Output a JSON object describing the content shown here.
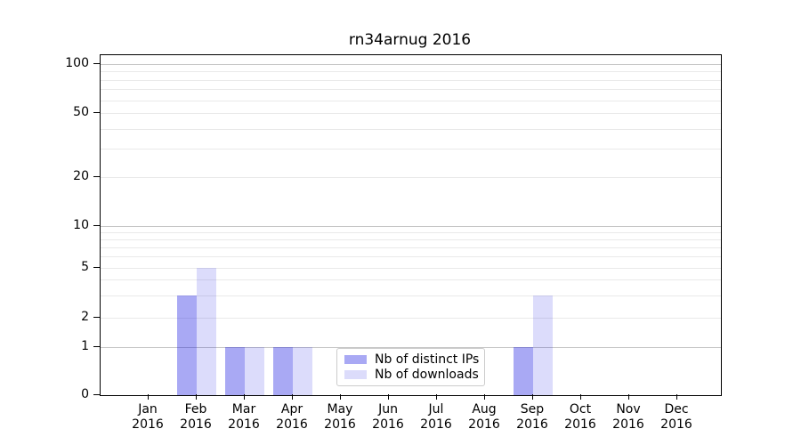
{
  "chart_data": {
    "type": "bar",
    "title": "rn34arnug 2016",
    "categories": [
      {
        "line1": "Jan",
        "line2": "2016"
      },
      {
        "line1": "Feb",
        "line2": "2016"
      },
      {
        "line1": "Mar",
        "line2": "2016"
      },
      {
        "line1": "Apr",
        "line2": "2016"
      },
      {
        "line1": "May",
        "line2": "2016"
      },
      {
        "line1": "Jun",
        "line2": "2016"
      },
      {
        "line1": "Jul",
        "line2": "2016"
      },
      {
        "line1": "Aug",
        "line2": "2016"
      },
      {
        "line1": "Sep",
        "line2": "2016"
      },
      {
        "line1": "Oct",
        "line2": "2016"
      },
      {
        "line1": "Nov",
        "line2": "2016"
      },
      {
        "line1": "Dec",
        "line2": "2016"
      }
    ],
    "series": [
      {
        "name": "Nb of distinct IPs",
        "color": "rgba(16,16,224,0.36)",
        "values": [
          0,
          3,
          1,
          1,
          0,
          0,
          0,
          0,
          1,
          0,
          0,
          0
        ]
      },
      {
        "name": "Nb of downloads",
        "color": "rgba(16,16,224,0.145)",
        "values": [
          0,
          5,
          1,
          1,
          0,
          0,
          0,
          0,
          3,
          0,
          0,
          0
        ]
      }
    ],
    "y_axis": {
      "scale": "symlog",
      "tick_values": [
        0,
        1,
        2,
        5,
        10,
        20,
        50,
        100
      ],
      "minor_grid_values": [
        2,
        3,
        4,
        5,
        6,
        7,
        8,
        9,
        20,
        30,
        40,
        50,
        60,
        70,
        80,
        90
      ],
      "major_grid_values": [
        1,
        10,
        100
      ],
      "range": [
        0,
        100
      ]
    },
    "legend_position": "lower center (inside plot)",
    "grid": "horizontal, minor + major",
    "colors": {
      "minor_grid": "#e9e9e9",
      "major_grid": "#c6c6c6",
      "axis": "#000000",
      "legend_border": "#cccccc"
    }
  }
}
